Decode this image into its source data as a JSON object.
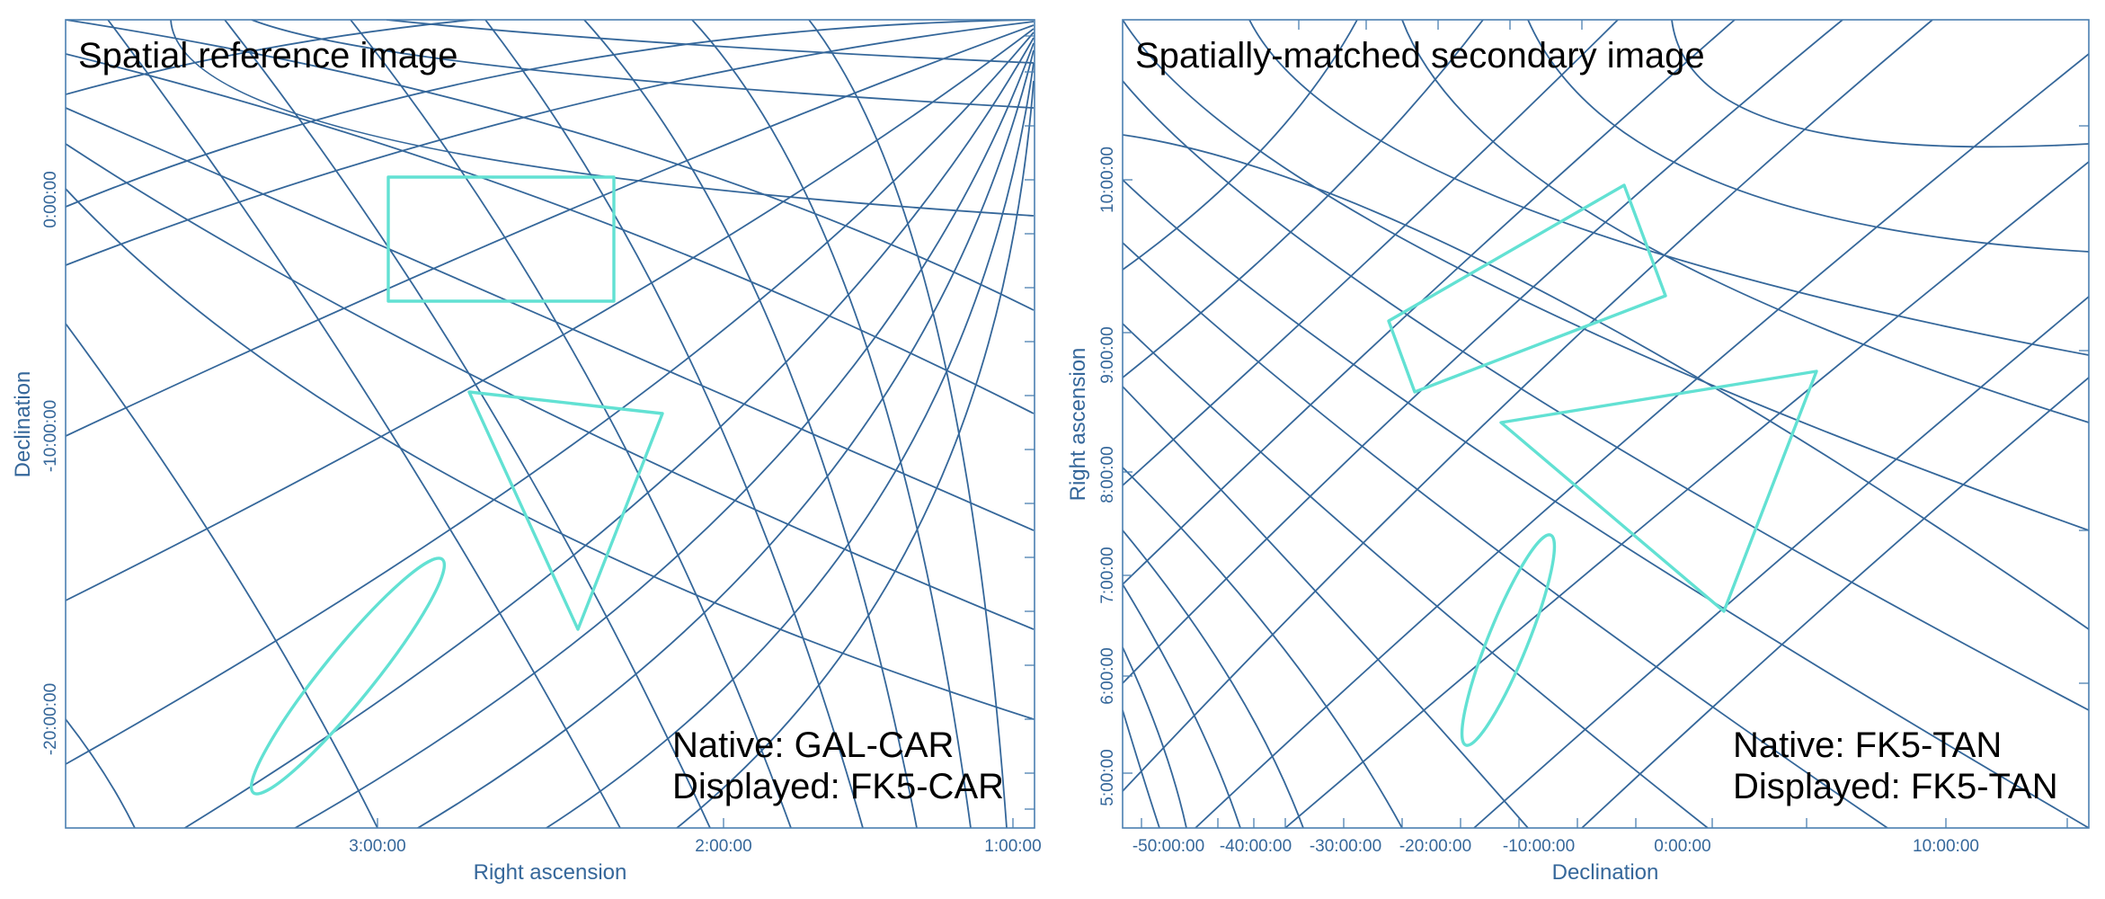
{
  "region_color": "#62e1d3",
  "grid_color": "#35679a",
  "left_panel": {
    "title": "Spatial reference image",
    "xlabel": "Right ascension",
    "ylabel": "Declination",
    "x_ticks": [
      "3:00:00",
      "2:00:00",
      "1:00:00"
    ],
    "y_ticks": [
      "0:00:00",
      "-10:00:00",
      "-20:00:00"
    ],
    "native": "Native: GAL-CAR",
    "displayed": "Displayed: FK5-CAR",
    "regions": [
      "rectangle",
      "polygon",
      "ellipse",
      "point"
    ]
  },
  "right_panel": {
    "title": "Spatially-matched secondary image",
    "xlabel": "Declination",
    "ylabel": "Right ascension",
    "x_ticks": [
      "-50:00:00",
      "-40:00:00",
      "-30:00:00",
      "-20:00:00",
      "-10:00:00",
      "0:00:00",
      "10:00:00"
    ],
    "y_ticks": [
      "10:00:00",
      "9:00:00",
      "8:00:00",
      "7:00:00",
      "6:00:00",
      "5:00:00"
    ],
    "native": "Native: FK5-TAN",
    "displayed": "Displayed: FK5-TAN",
    "regions": [
      "rectangle",
      "polygon",
      "ellipse",
      "point"
    ]
  }
}
